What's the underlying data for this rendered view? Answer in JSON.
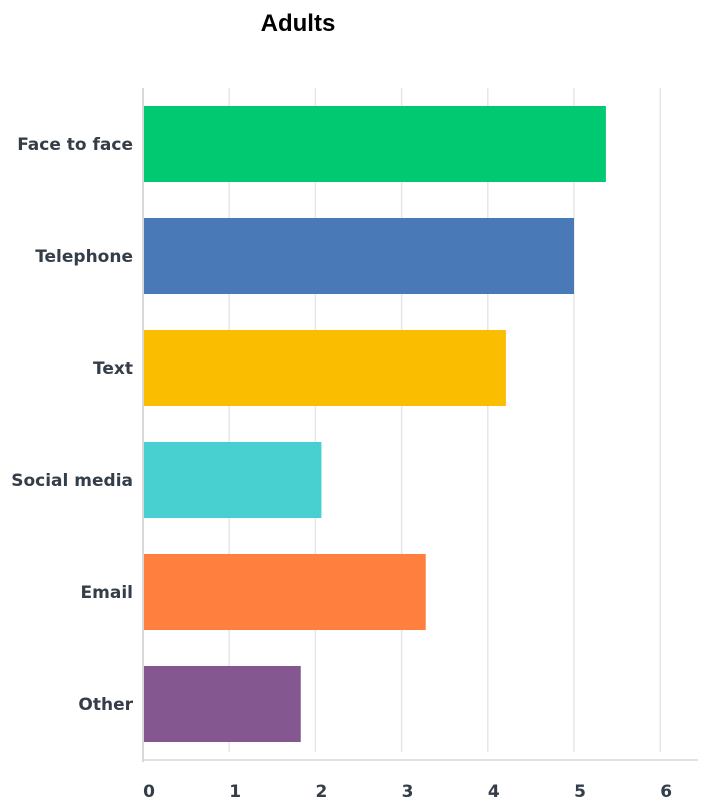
{
  "chart_data": {
    "type": "bar",
    "orientation": "horizontal",
    "title": "Adults",
    "categories": [
      "Face to face",
      "Telephone",
      "Text",
      "Social media",
      "Email",
      "Other"
    ],
    "values": [
      5.37,
      5.0,
      4.21,
      2.07,
      3.28,
      1.83
    ],
    "colors": [
      "#00c971",
      "#4a79b7",
      "#fbbd00",
      "#48cfcf",
      "#ff803e",
      "#845791"
    ],
    "xlim": [
      0,
      6.5
    ],
    "xticks": [
      0,
      1,
      2,
      3,
      4,
      5,
      6
    ],
    "grid": true,
    "legend": "none"
  }
}
